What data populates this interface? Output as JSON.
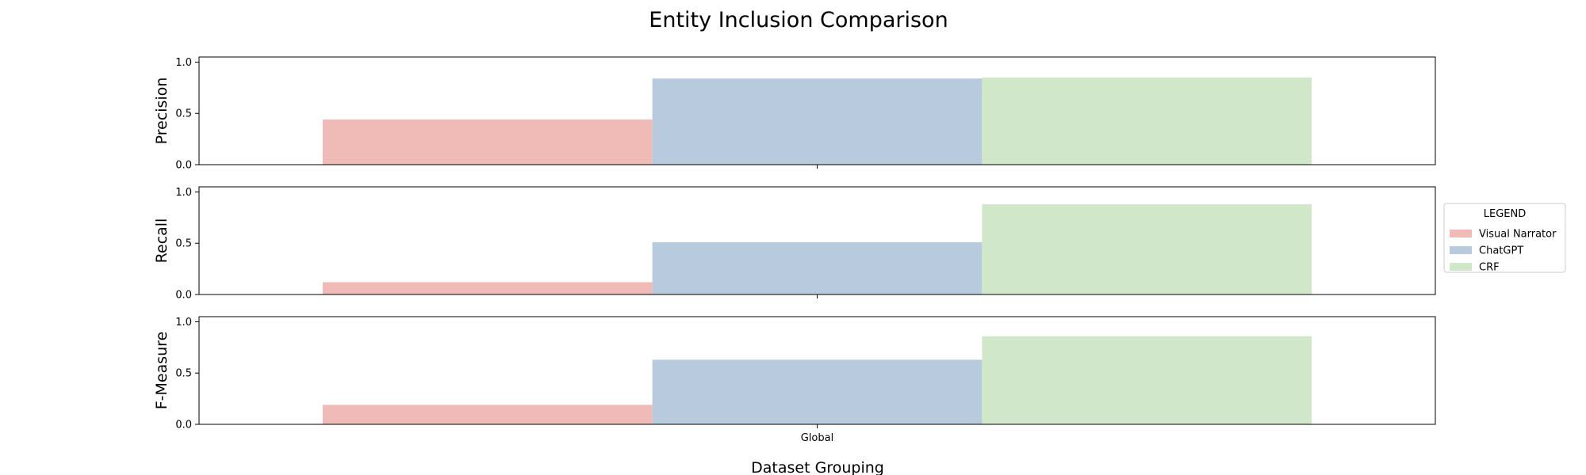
{
  "chart_data": {
    "type": "bar",
    "title": "Entity Inclusion Comparison",
    "xlabel": "Dataset Grouping",
    "categories": [
      "Global"
    ],
    "legend": {
      "title": "LEGEND",
      "placement": "right"
    },
    "grid": false,
    "series": [
      {
        "name": "Visual Narrator",
        "color": "#f0bab7"
      },
      {
        "name": "ChatGPT",
        "color": "#b8cbde"
      },
      {
        "name": "CRF",
        "color": "#d0e7ca"
      }
    ],
    "panels": [
      {
        "ylabel": "Precision",
        "ylim": [
          0,
          1.05
        ],
        "yticks": [
          "0.0",
          "0.5",
          "1.0"
        ],
        "values": [
          0.44,
          0.84,
          0.85
        ]
      },
      {
        "ylabel": "Recall",
        "ylim": [
          0,
          1.05
        ],
        "yticks": [
          "0.0",
          "0.5",
          "1.0"
        ],
        "values": [
          0.12,
          0.51,
          0.88
        ]
      },
      {
        "ylabel": "F-Measure",
        "ylim": [
          0,
          1.05
        ],
        "yticks": [
          "0.0",
          "0.5",
          "1.0"
        ],
        "values": [
          0.19,
          0.63,
          0.86
        ]
      }
    ]
  }
}
